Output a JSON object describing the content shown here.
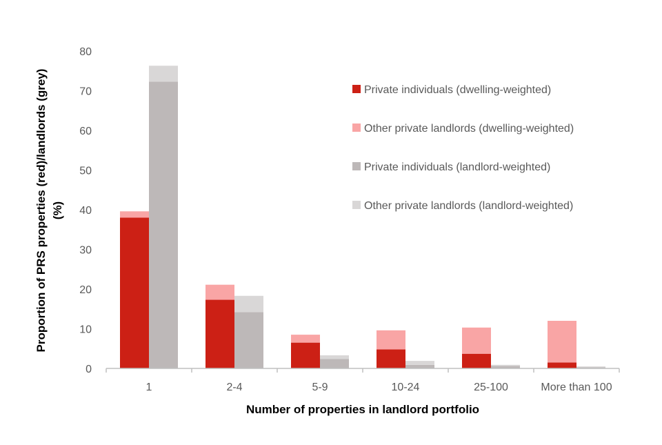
{
  "chart_data": {
    "type": "bar",
    "title": "",
    "xlabel": "Number of properties in landlord portfolio",
    "ylabel_line1": "Proportion of PRS properties (red)/landlords (grey)",
    "ylabel_line2": "(%)",
    "ylim": [
      0,
      80
    ],
    "yticks": [
      "0",
      "10",
      "20",
      "30",
      "40",
      "50",
      "60",
      "70",
      "80"
    ],
    "categories": [
      "1",
      "2-4",
      "5-9",
      "10-24",
      "25-100",
      "More than 100"
    ],
    "stacks": [
      {
        "group": "dwelling-weighted",
        "series": [
          {
            "name": "Private individuals (dwelling-weighted)",
            "color": "#cc2015",
            "values": [
              38.0,
              17.3,
              6.5,
              4.8,
              3.7,
              1.5
            ]
          },
          {
            "name": "Other private landlords (dwelling-weighted)",
            "color": "#f9a5a5",
            "values": [
              1.6,
              3.8,
              2.0,
              4.8,
              6.6,
              10.5
            ]
          }
        ]
      },
      {
        "group": "landlord-weighted",
        "series": [
          {
            "name": "Private individuals (landlord-weighted)",
            "color": "#bdb8b8",
            "values": [
              72.3,
              14.2,
              2.4,
              0.9,
              0.6,
              0.3
            ]
          },
          {
            "name": "Other private landlords (landlord-weighted)",
            "color": "#d9d7d7",
            "values": [
              4.0,
              4.1,
              0.9,
              1.0,
              0.3,
              0.2
            ]
          }
        ]
      }
    ],
    "legend": {
      "placement": "top-right",
      "items": [
        {
          "label": "Private individuals (dwelling-weighted)",
          "color": "#cc2015"
        },
        {
          "label": "Other private landlords (dwelling-weighted)",
          "color": "#f9a5a5"
        },
        {
          "label": "Private individuals (landlord-weighted)",
          "color": "#bdb8b8"
        },
        {
          "label": "Other private landlords (landlord-weighted)",
          "color": "#d9d7d7"
        }
      ]
    },
    "grid": false
  }
}
